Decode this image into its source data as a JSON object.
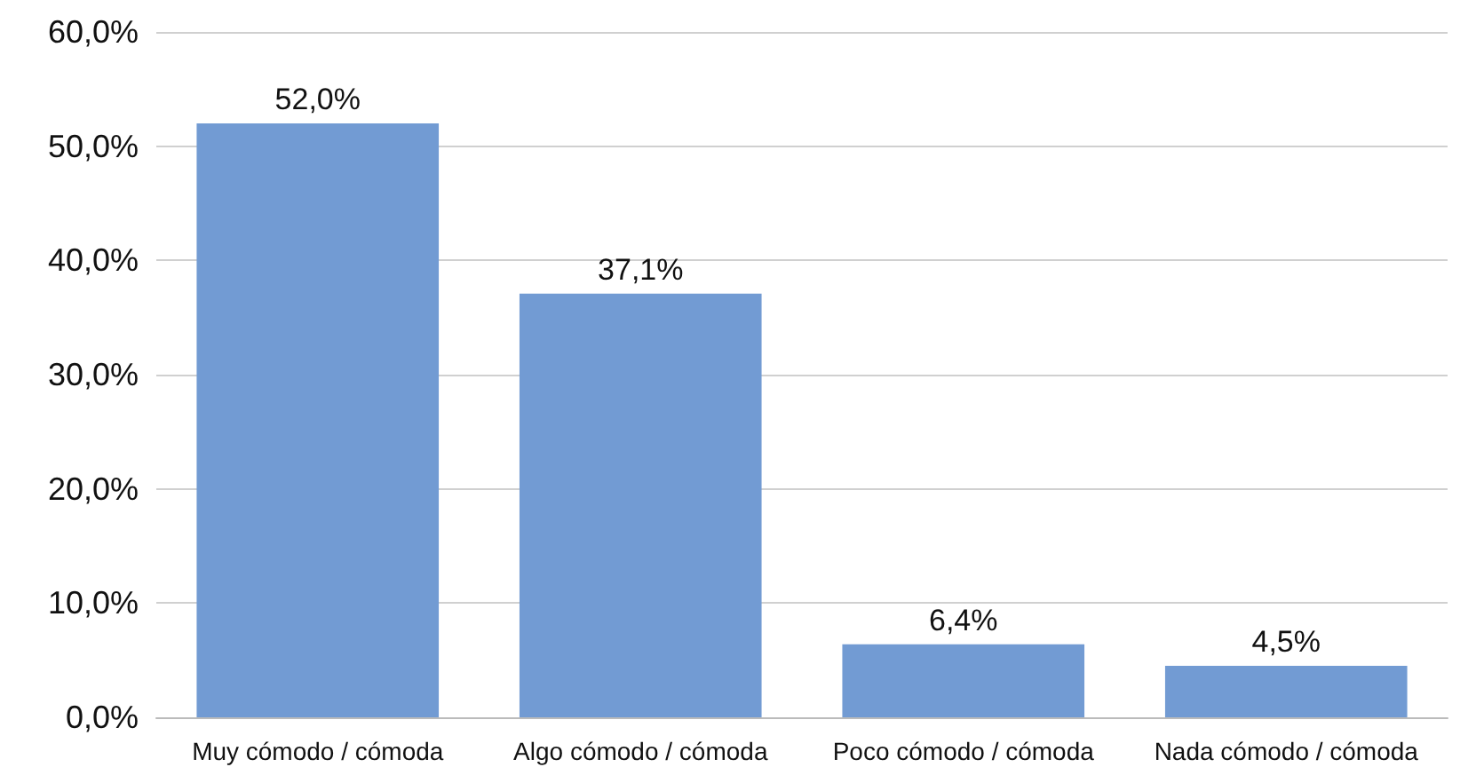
{
  "chart_data": {
    "type": "bar",
    "categories": [
      "Muy cómodo / cómoda",
      "Algo cómodo / cómoda",
      "Poco cómodo / cómoda",
      "Nada cómodo / cómoda"
    ],
    "values": [
      52.0,
      37.1,
      6.4,
      4.5
    ],
    "value_labels": [
      "52,0%",
      "37,1%",
      "6,4%",
      "4,5%"
    ],
    "color": "#729bd3",
    "ylim": [
      0,
      60
    ],
    "yticks": [
      {
        "value": 0,
        "label": "0,0%"
      },
      {
        "value": 10,
        "label": "10,0%"
      },
      {
        "value": 20,
        "label": "20,0%"
      },
      {
        "value": 30,
        "label": "30,0%"
      },
      {
        "value": 40,
        "label": "40,0%"
      },
      {
        "value": 50,
        "label": "50,0%"
      },
      {
        "value": 60,
        "label": "60,0%"
      }
    ],
    "grid": "y"
  }
}
